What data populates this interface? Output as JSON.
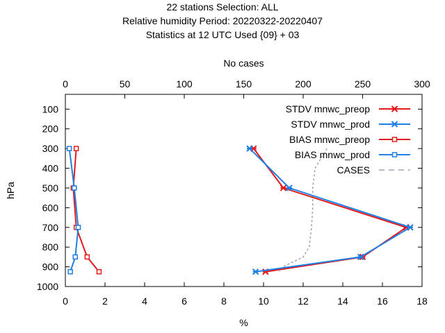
{
  "chart_data": {
    "type": "line",
    "title_lines": [
      "22 stations Selection: ALL",
      "Relative humidity  Period: 20220322-20220407",
      "Statistics at 12 UTC  Used {09} + 03"
    ],
    "xlabel": "%",
    "x2label": "No cases",
    "ylabel": "hPa",
    "xlim": [
      0,
      18
    ],
    "x2lim": [
      0,
      300
    ],
    "ylim": [
      1000,
      25
    ],
    "x_ticks": [
      "0",
      "2",
      "4",
      "6",
      "8",
      "10",
      "12",
      "14",
      "16",
      "18"
    ],
    "x2_ticks": [
      "0",
      "50",
      "100",
      "150",
      "200",
      "250",
      "300"
    ],
    "y_ticks": [
      "100",
      "200",
      "300",
      "400",
      "500",
      "600",
      "700",
      "800",
      "900",
      "1000"
    ],
    "grid": false,
    "legend_position": "top-right",
    "series": [
      {
        "name": "STDV mnwc_preop",
        "color": "#e31a1c",
        "marker": "x",
        "points": [
          [
            9.5,
            300
          ],
          [
            11.0,
            500
          ],
          [
            17.2,
            700
          ],
          [
            15.0,
            850
          ],
          [
            10.1,
            925
          ]
        ]
      },
      {
        "name": "STDV mnwc_prod",
        "color": "#1f7fe3",
        "marker": "x",
        "points": [
          [
            9.3,
            300
          ],
          [
            11.3,
            500
          ],
          [
            17.4,
            700
          ],
          [
            14.9,
            850
          ],
          [
            9.6,
            925
          ]
        ]
      },
      {
        "name": "BIAS mnwc_preop",
        "color": "#e31a1c",
        "marker": "square",
        "points": [
          [
            0.55,
            300
          ],
          [
            0.4,
            500
          ],
          [
            0.55,
            700
          ],
          [
            1.1,
            850
          ],
          [
            1.7,
            925
          ]
        ]
      },
      {
        "name": "BIAS mnwc_prod",
        "color": "#1f7fe3",
        "marker": "square",
        "points": [
          [
            0.2,
            300
          ],
          [
            0.45,
            500
          ],
          [
            0.65,
            700
          ],
          [
            0.5,
            850
          ],
          [
            0.25,
            925
          ]
        ]
      },
      {
        "name": "CASES",
        "color": "#a0a0b8",
        "marker": "none",
        "dashed": true,
        "axis": "x2",
        "points": [
          [
            220,
            300
          ],
          [
            210,
            400
          ],
          [
            208,
            500
          ],
          [
            208,
            600
          ],
          [
            207,
            700
          ],
          [
            205,
            800
          ],
          [
            200,
            850
          ],
          [
            183,
            900
          ],
          [
            180,
            925
          ]
        ]
      }
    ]
  }
}
